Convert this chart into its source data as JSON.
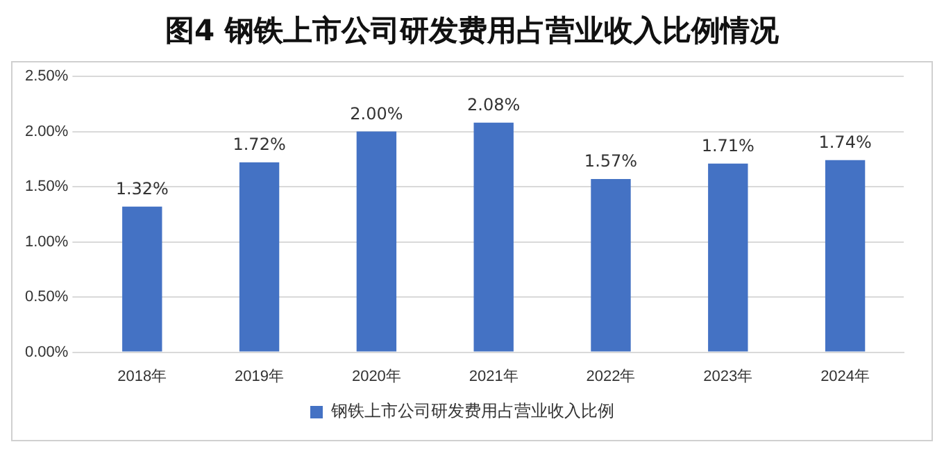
{
  "chart_data": {
    "type": "bar",
    "title": "图4  钢铁上市公司研发费用占营业收入比例情况",
    "categories": [
      "2018年",
      "2019年",
      "2020年",
      "2021年",
      "2022年",
      "2023年",
      "2024年"
    ],
    "series": [
      {
        "name": "钢铁上市公司研发费用占营业收入比例",
        "color": "#4472c4",
        "values": [
          1.32,
          1.72,
          2.0,
          2.08,
          1.57,
          1.71,
          1.74
        ],
        "value_labels": [
          "1.32%",
          "1.72%",
          "2.00%",
          "2.08%",
          "1.57%",
          "1.71%",
          "1.74%"
        ]
      }
    ],
    "ylim": [
      0,
      2.5
    ],
    "yticks": [
      {
        "value": 0,
        "label": "0.00%"
      },
      {
        "value": 0.5,
        "label": "0.50%"
      },
      {
        "value": 1,
        "label": "1.00%"
      },
      {
        "value": 1.5,
        "label": "1.50%"
      },
      {
        "value": 2,
        "label": "2.00%"
      },
      {
        "value": 2.5,
        "label": "2.50%"
      }
    ],
    "grid": "y",
    "legend": "bottom"
  }
}
